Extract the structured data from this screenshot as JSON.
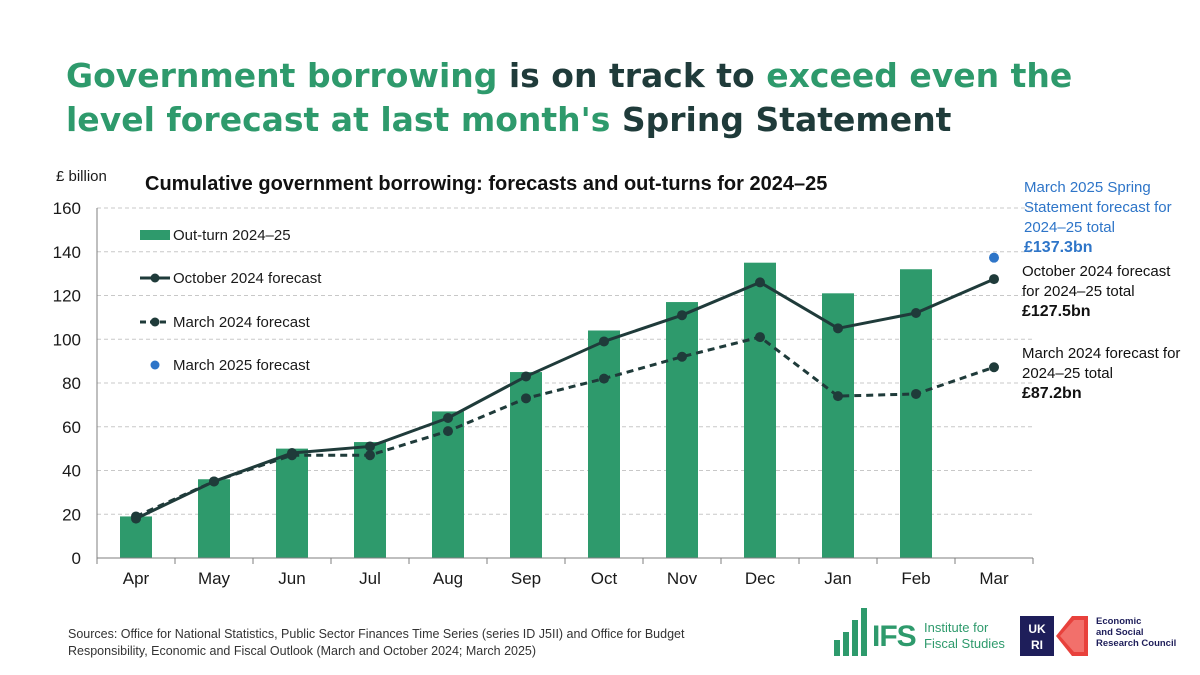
{
  "headline": {
    "part1": "Government borrowing",
    "part2": " is on track to ",
    "part3": "exceed even the level forecast at last month's",
    "part4": " Spring Statement"
  },
  "colors": {
    "bar": "#2e9a6c",
    "oct_line": "#1f3b3a",
    "mar24_line": "#1f3b3a",
    "mar25_point": "#2e75c8",
    "headline_green": "#2e9a6c",
    "headline_dark": "#1f3b3a",
    "grid": "#c8c8c8"
  },
  "chart_data": {
    "type": "bar",
    "title": "Cumulative government borrowing: forecasts and out-turns for 2024–25",
    "ylabel": "£ billion",
    "xlabel": "",
    "ylim": [
      0,
      160
    ],
    "yticks": [
      0,
      20,
      40,
      60,
      80,
      100,
      120,
      140,
      160
    ],
    "grid": true,
    "legend_position": "top-left",
    "categories": [
      "Apr",
      "May",
      "Jun",
      "Jul",
      "Aug",
      "Sep",
      "Oct",
      "Nov",
      "Dec",
      "Jan",
      "Feb",
      "Mar"
    ],
    "series": [
      {
        "name": "Out-turn 2024–25",
        "type": "bar",
        "values": [
          19,
          36,
          50,
          53,
          67,
          85,
          104,
          117,
          135,
          121,
          132,
          null
        ]
      },
      {
        "name": "October 2024 forecast",
        "type": "line",
        "values": [
          18,
          35,
          48,
          51,
          64,
          83,
          99,
          111,
          126,
          105,
          112,
          127.5
        ]
      },
      {
        "name": "March 2024 forecast",
        "type": "line-dashed",
        "values": [
          19,
          35,
          47,
          47,
          58,
          73,
          82,
          92,
          101,
          74,
          75,
          87.2
        ]
      },
      {
        "name": "March 2025 forecast",
        "type": "point",
        "values": [
          null,
          null,
          null,
          null,
          null,
          null,
          null,
          null,
          null,
          null,
          null,
          137.3
        ]
      }
    ],
    "annotations": [
      {
        "id": "mar25",
        "text": "March 2025 Spring Statement forecast for 2024–25 total",
        "value": "£137.3bn"
      },
      {
        "id": "oct",
        "text": "October 2024 forecast for 2024–25 total",
        "value": "£127.5bn"
      },
      {
        "id": "mar24",
        "text": "March 2024 forecast for 2024–25 total",
        "value": "£87.2bn"
      }
    ]
  },
  "sources": "Sources: Office for National Statistics, Public Sector Finances Time Series (series ID J5II) and Office for Budget Responsibility, Economic and Fiscal Outlook (March and October 2024; March 2025)",
  "logos": {
    "ifs_word": "IFS",
    "ifs_name_line1": "Institute for",
    "ifs_name_line2": "Fiscal Studies",
    "ukri": "UKRI",
    "esrc_line1": "Economic",
    "esrc_line2": "and Social",
    "esrc_line3": "Research Council"
  }
}
